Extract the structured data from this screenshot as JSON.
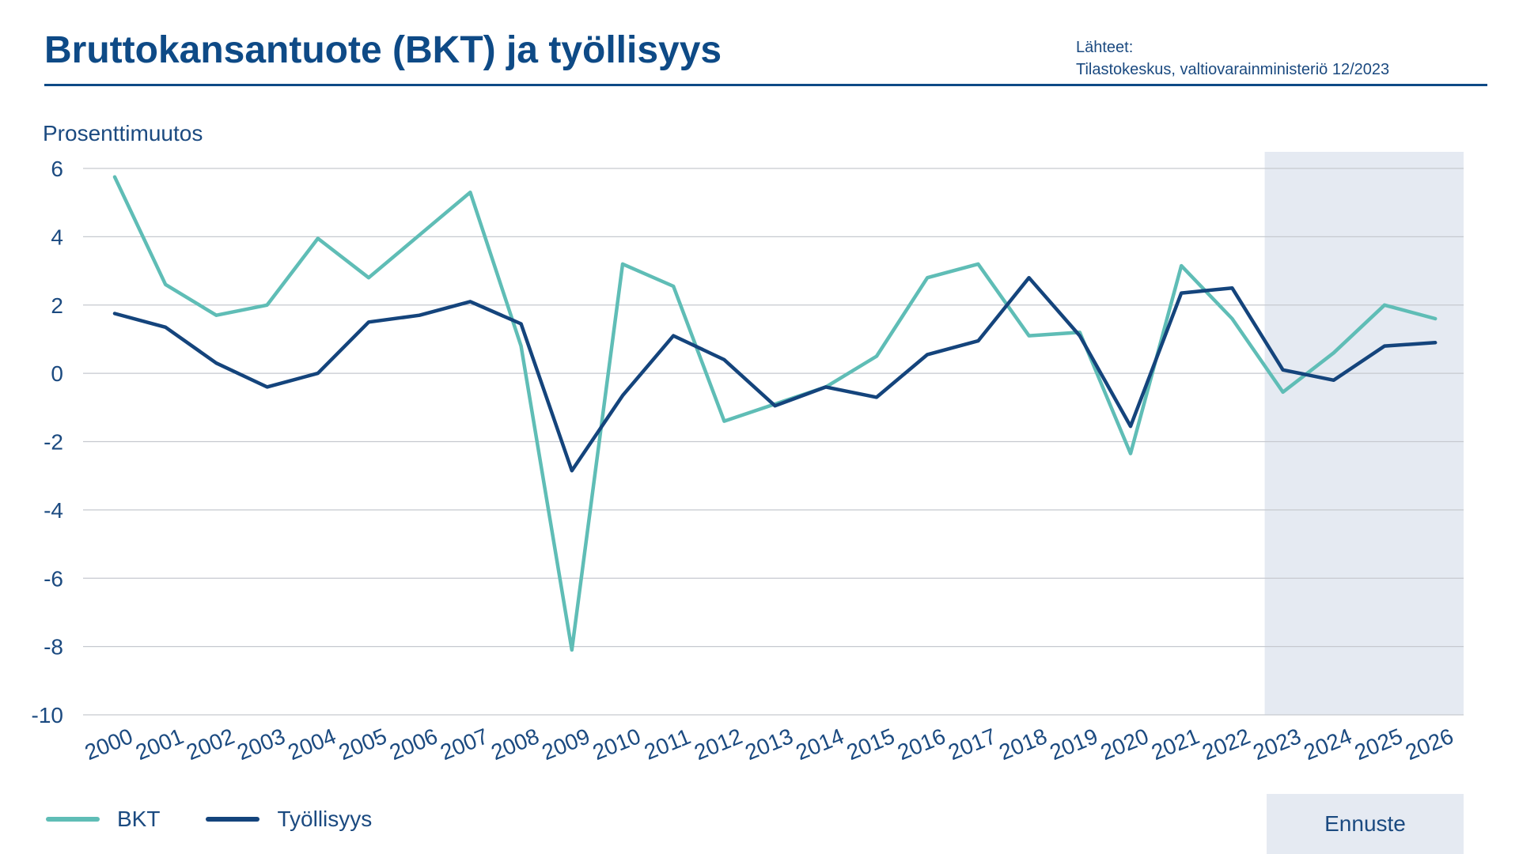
{
  "title": "Bruttokansantuote (BKT) ja työllisyys",
  "source": {
    "label": "Lähteet:",
    "text": "Tilastokeskus, valtiovarainministeriö 12/2023"
  },
  "forecast_label": "Ennuste",
  "colors": {
    "bkt": "#5fbdb6",
    "tyollisyys": "#14447c",
    "forecast_band": "#e5eaf2",
    "grid": "#c6c9cf",
    "text": "#1b4a80"
  },
  "chart_data": {
    "type": "line",
    "ylabel": "Prosenttimuutos",
    "ylim": [
      -10,
      6
    ],
    "yticks": [
      6,
      4,
      2,
      0,
      -2,
      -4,
      -6,
      -8,
      -10
    ],
    "x": [
      "2000",
      "2001",
      "2002",
      "2003",
      "2004",
      "2005",
      "2006",
      "2007",
      "2008",
      "2009",
      "2010",
      "2011",
      "2012",
      "2013",
      "2014",
      "2015",
      "2016",
      "2017",
      "2018",
      "2019",
      "2020",
      "2021",
      "2022",
      "2023",
      "2024",
      "2025",
      "2026"
    ],
    "forecast_from": "2023",
    "grid": true,
    "legend_position": "bottom-left",
    "series": [
      {
        "name": "BKT",
        "color_key": "bkt",
        "values": [
          5.75,
          2.6,
          1.7,
          2.0,
          3.95,
          2.8,
          4.05,
          5.3,
          0.8,
          -8.1,
          3.2,
          2.55,
          -1.4,
          -0.9,
          -0.4,
          0.5,
          2.8,
          3.2,
          1.1,
          1.2,
          -2.35,
          3.15,
          1.6,
          -0.55,
          0.6,
          2.0,
          1.6
        ]
      },
      {
        "name": "Työllisyys",
        "color_key": "tyollisyys",
        "values": [
          1.75,
          1.35,
          0.3,
          -0.4,
          0.0,
          1.5,
          1.7,
          2.1,
          1.45,
          -2.85,
          -0.65,
          1.1,
          0.4,
          -0.95,
          -0.4,
          -0.7,
          0.55,
          0.95,
          2.8,
          1.1,
          -1.55,
          2.35,
          2.5,
          0.1,
          -0.2,
          0.8,
          0.9
        ]
      }
    ]
  }
}
